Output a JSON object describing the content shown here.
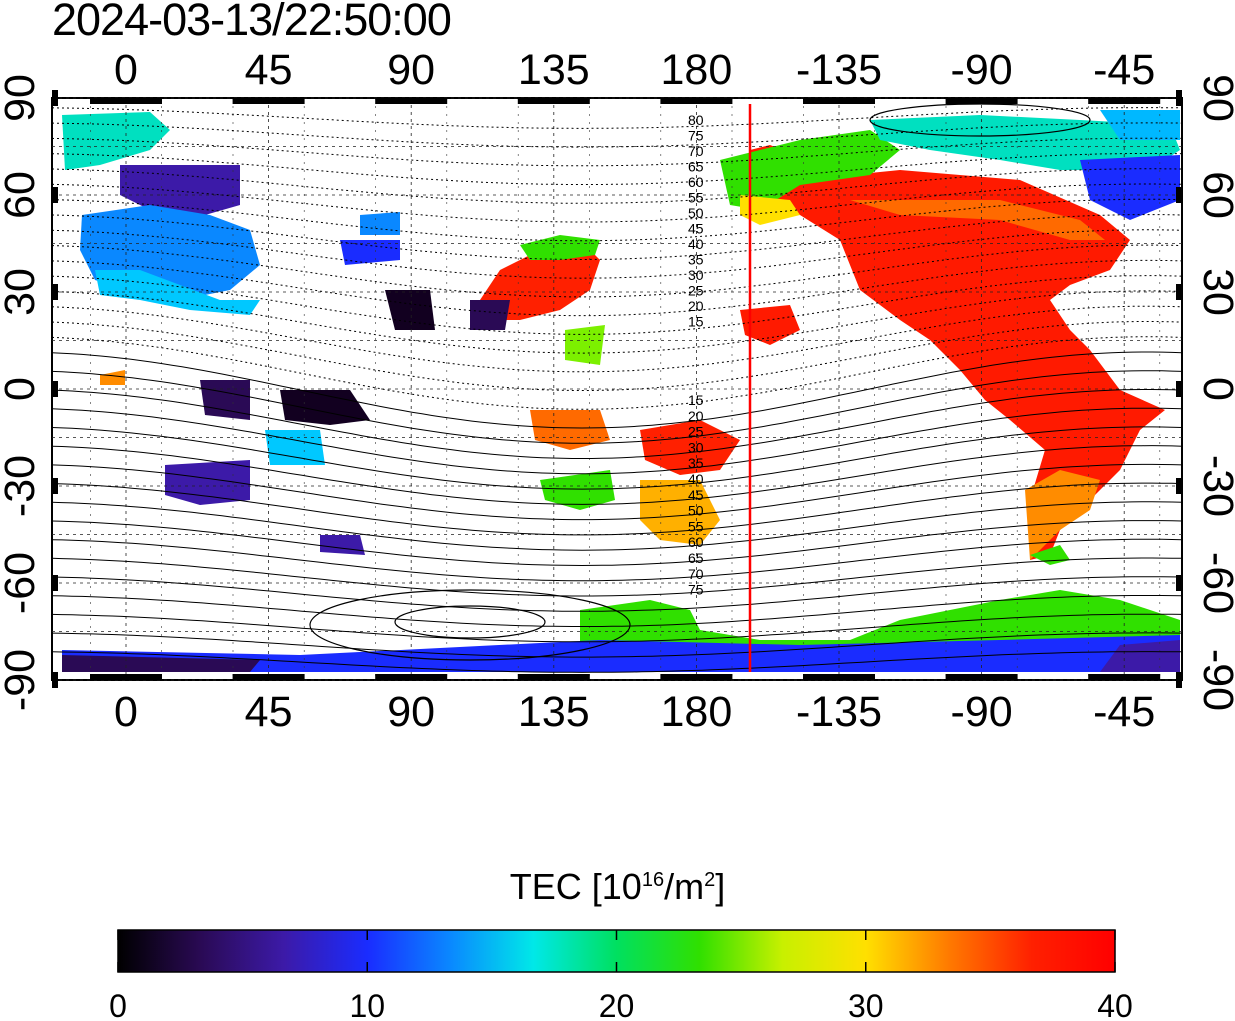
{
  "header": {
    "timestamp": "2024-03-13/22:50:00"
  },
  "map": {
    "lon_ticks": [
      "0",
      "45",
      "90",
      "135",
      "180",
      "-135",
      "-90",
      "-45"
    ],
    "lat_ticks_left": [
      "90",
      "60",
      "30",
      "0",
      "-30",
      "-60",
      "-90"
    ],
    "lat_ticks_right": [
      "90",
      "60",
      "30",
      "0",
      "-30",
      "-60",
      "-90"
    ],
    "contour_labels_north": [
      "80",
      "75",
      "70",
      "65",
      "60",
      "55",
      "50",
      "45",
      "40",
      "35",
      "30",
      "25",
      "20",
      "15"
    ],
    "contour_labels_south": [
      "15",
      "20",
      "25",
      "30",
      "35",
      "40",
      "45",
      "50",
      "55",
      "60",
      "65",
      "70",
      "75"
    ],
    "marker_line_color": "#ff0000"
  },
  "colorbar": {
    "title_prefix": "TEC  [10",
    "title_exp": "16",
    "title_mid": "/m",
    "title_exp2": "2",
    "title_suffix": "]",
    "ticks": [
      "0",
      "10",
      "20",
      "30",
      "40"
    ],
    "stops": [
      "#000000",
      "#2a0a55",
      "#3c1aa8",
      "#1a2cff",
      "#0a88ff",
      "#00e8e8",
      "#00e060",
      "#30e000",
      "#c8f000",
      "#ffe000",
      "#ff7a00",
      "#ff2000",
      "#ff0000"
    ]
  }
}
